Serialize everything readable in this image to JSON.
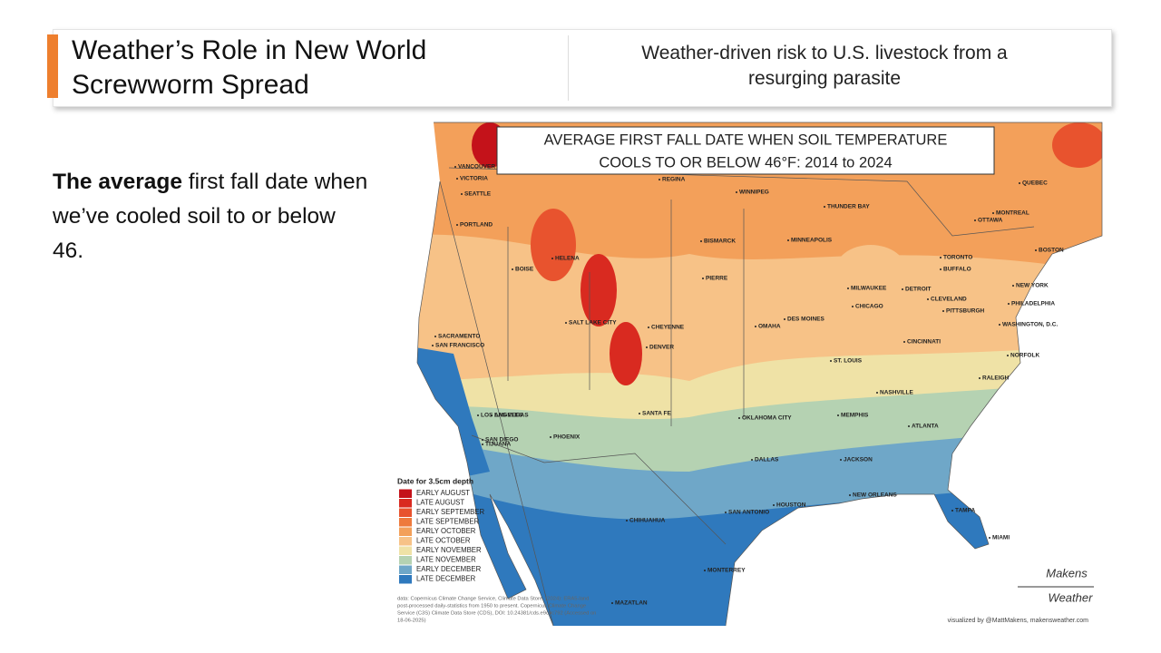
{
  "header": {
    "title": "Weather’s Role in New World Screwworm Spread",
    "subtitle": "Weather-driven risk to U.S. livestock from a resurging parasite"
  },
  "body": {
    "bold": "The average",
    "text": " first fall date when we’ve cooled soil to or below 46."
  },
  "map": {
    "title_lines": [
      "AVERAGE FIRST FALL DATE WHEN SOIL TEMPERATURE",
      "COOLS TO OR BELOW 46°F: 2014 to 2024"
    ],
    "legend": {
      "title": "Date for 3.5cm depth",
      "items": [
        {
          "label": "EARLY AUGUST",
          "color": "#c4121a"
        },
        {
          "label": "LATE AUGUST",
          "color": "#d92a20"
        },
        {
          "label": "EARLY SEPTEMBER",
          "color": "#e8532e"
        },
        {
          "label": "LATE SEPTEMBER",
          "color": "#ee7a3c"
        },
        {
          "label": "EARLY OCTOBER",
          "color": "#f3a05a"
        },
        {
          "label": "LATE OCTOBER",
          "color": "#f7c287"
        },
        {
          "label": "EARLY NOVEMBER",
          "color": "#efe2a6"
        },
        {
          "label": "LATE NOVEMBER",
          "color": "#b5d2b2"
        },
        {
          "label": "EARLY DECEMBER",
          "color": "#6fa7c8"
        },
        {
          "label": "LATE DECEMBER",
          "color": "#2f79bd"
        }
      ]
    },
    "cities": [
      "VANCOUVER",
      "VICTORIA",
      "SEATTLE",
      "PORTLAND",
      "BOISE",
      "HELENA",
      "REGINA",
      "WINNIPEG",
      "THUNDER BAY",
      "QUEBEC",
      "MONTREAL",
      "OTTAWA",
      "BOSTON",
      "TORONTO",
      "BUFFALO",
      "NEW YORK",
      "PHILADELPHIA",
      "WASHINGTON, D.C.",
      "PITTSBURGH",
      "CLEVELAND",
      "DETROIT",
      "MILWAUKEE",
      "CHICAGO",
      "MINNEAPOLIS",
      "BISMARCK",
      "PIERRE",
      "DES MOINES",
      "OMAHA",
      "CHEYENNE",
      "DENVER",
      "SALT LAKE CITY",
      "SACRAMENTO",
      "SAN FRANCISCO",
      "LAS VEGAS",
      "LOS ANGELES",
      "SAN DIEGO",
      "TIJUANA",
      "PHOENIX",
      "SANTA FE",
      "OKLAHOMA CITY",
      "DALLAS",
      "HOUSTON",
      "SAN ANTONIO",
      "CHIHUAHUA",
      "MONTERREY",
      "MAZATLAN",
      "NEW ORLEANS",
      "JACKSON",
      "MEMPHIS",
      "NASHVILLE",
      "ATLANTA",
      "CINCINNATI",
      "ST. LOUIS",
      "NORFOLK",
      "RALEIGH",
      "TAMPA",
      "MIAMI"
    ],
    "source_lines": [
      "data: Copernicus Climate Change Service, Climate Data Store, (2024): ERA5-land",
      "post-processed daily-statistics from 1950 to present. Copernicus Climate Change",
      "Service (C3S) Climate Data Store (CDS), DOI: 10.24381/cds.e9c9c792 (Accessed on",
      "18-06-2025)"
    ],
    "credit": "visualized by @MattMakens, makensweather.com",
    "logo": [
      "Makens",
      "Weather"
    ]
  }
}
